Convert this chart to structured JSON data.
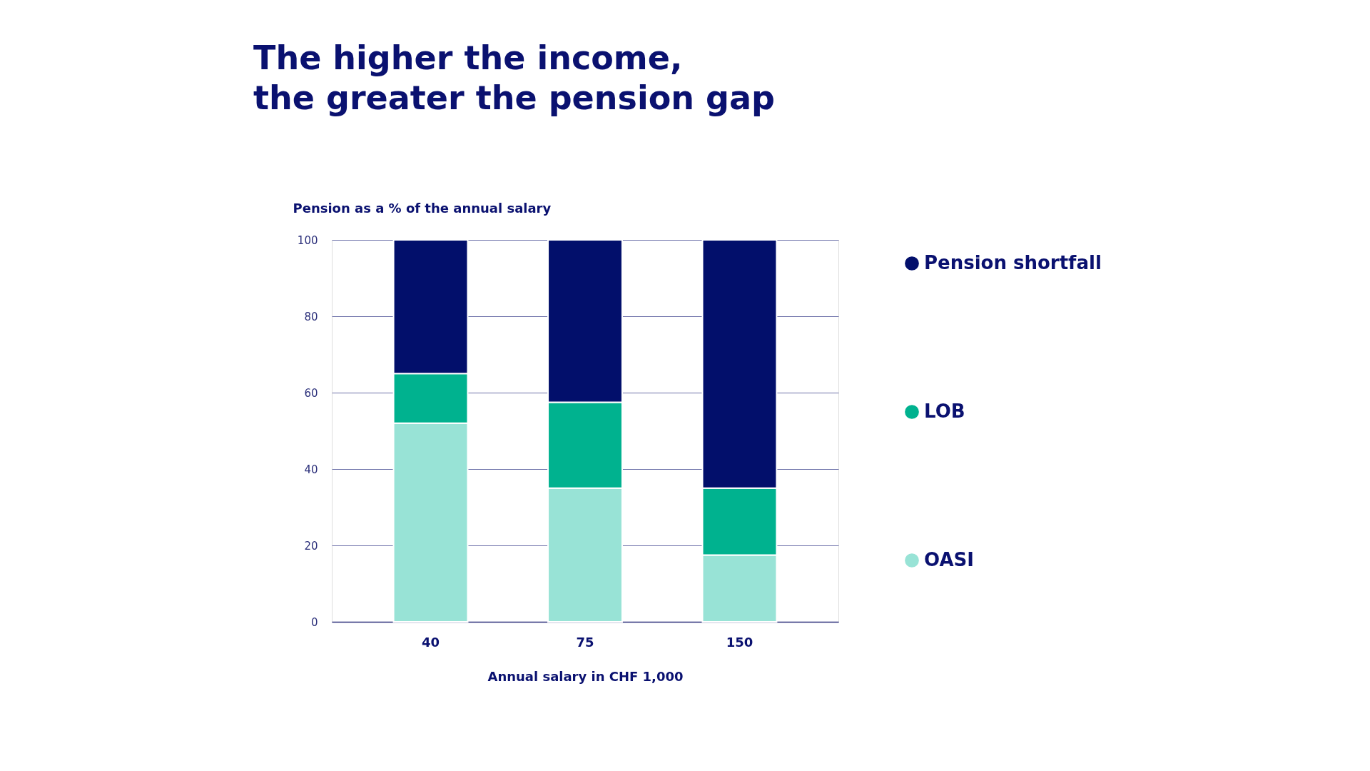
{
  "chart_data": {
    "type": "bar",
    "title": "The higher the income,\nthe greater the pension gap",
    "ylabel": "Pension as a % of the annual salary",
    "xlabel": "Annual salary in CHF 1,000",
    "categories": [
      "40",
      "75",
      "150"
    ],
    "stacked": true,
    "series": [
      {
        "name": "OASI",
        "color": "#98e3d6",
        "values": [
          52,
          35,
          17.5
        ]
      },
      {
        "name": "LOB",
        "color": "#00b28f",
        "values": [
          13,
          22.5,
          17.5
        ]
      },
      {
        "name": "Pension shortfall",
        "color": "#020f6b",
        "values": [
          35,
          42.5,
          65
        ]
      }
    ],
    "ylim": [
      0,
      100
    ],
    "yticks": [
      0,
      20,
      40,
      60,
      80,
      100
    ],
    "grid": "y",
    "legend": "right"
  }
}
